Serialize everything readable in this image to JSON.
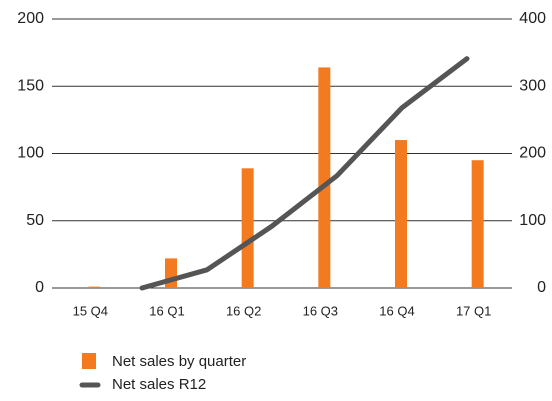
{
  "chart_data": {
    "type": "bar-line",
    "categories": [
      "15 Q4",
      "16 Q1",
      "16 Q2",
      "16 Q3",
      "16 Q4",
      "17 Q1"
    ],
    "series": [
      {
        "name": "Net sales by quarter",
        "color": "#f47a20",
        "type": "bar",
        "values": [
          1,
          22,
          89,
          164,
          110,
          95
        ]
      },
      {
        "name": "Net sales R12",
        "color": "#555555",
        "type": "line",
        "axis": "y2",
        "values": [
          0,
          27,
          92,
          167,
          268,
          341
        ]
      }
    ],
    "ylim": [
      0,
      200
    ],
    "yticks": [
      0,
      50,
      100,
      150,
      200
    ],
    "y2lim": [
      0,
      400
    ],
    "y2ticks": [
      0,
      100,
      200,
      300,
      400
    ],
    "grid": true,
    "legend": "bottom"
  }
}
